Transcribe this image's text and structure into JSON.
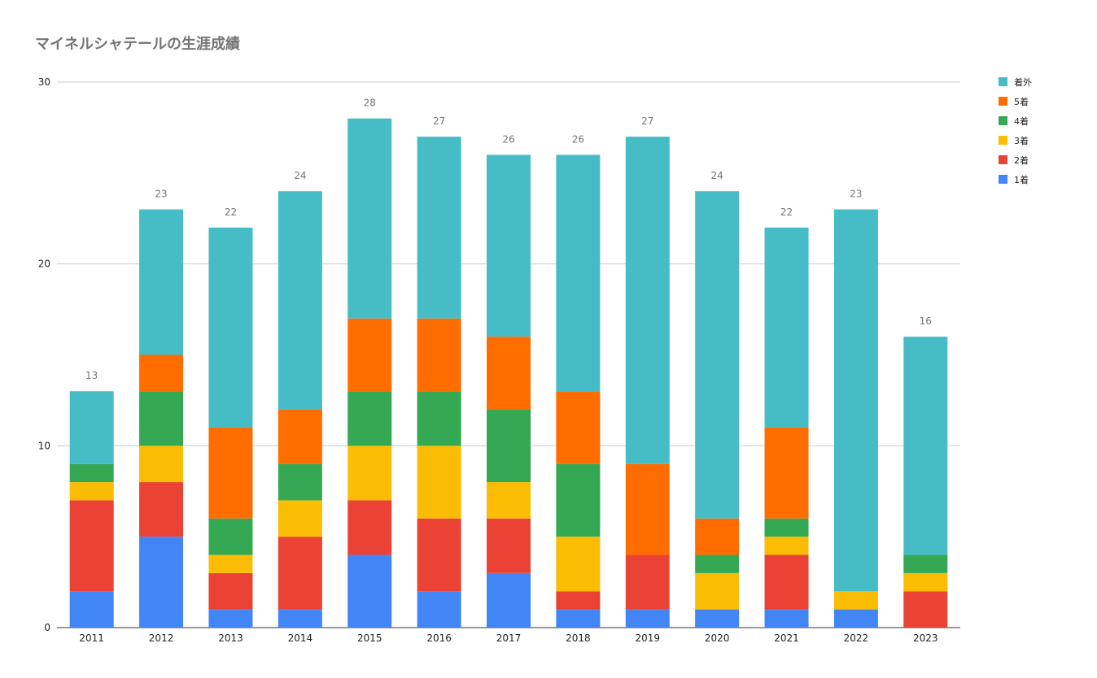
{
  "chart_data": {
    "type": "bar",
    "stacked": true,
    "title": "マイネルシャテールの生涯成績",
    "categories": [
      "2011",
      "2012",
      "2013",
      "2014",
      "2015",
      "2016",
      "2017",
      "2018",
      "2019",
      "2020",
      "2021",
      "2022",
      "2023"
    ],
    "series": [
      {
        "name": "1着",
        "color": "#4285f4",
        "values": [
          2,
          5,
          1,
          1,
          4,
          2,
          3,
          1,
          1,
          1,
          1,
          1,
          0
        ]
      },
      {
        "name": "2着",
        "color": "#ea4335",
        "values": [
          5,
          3,
          2,
          4,
          3,
          4,
          3,
          1,
          3,
          0,
          3,
          0,
          2
        ]
      },
      {
        "name": "3着",
        "color": "#fbbc04",
        "values": [
          1,
          2,
          1,
          2,
          3,
          4,
          2,
          3,
          0,
          2,
          1,
          1,
          1
        ]
      },
      {
        "name": "4着",
        "color": "#34a853",
        "values": [
          1,
          3,
          2,
          2,
          3,
          3,
          4,
          4,
          0,
          1,
          1,
          0,
          1
        ]
      },
      {
        "name": "5着",
        "color": "#ff6d01",
        "values": [
          0,
          2,
          5,
          3,
          4,
          4,
          4,
          4,
          5,
          2,
          5,
          0,
          0
        ]
      },
      {
        "name": "着外",
        "color": "#46bdc6",
        "values": [
          4,
          8,
          11,
          12,
          11,
          10,
          10,
          13,
          18,
          18,
          11,
          21,
          12
        ]
      }
    ],
    "totals": [
      "13",
      "23",
      "22",
      "24",
      "28",
      "27",
      "26",
      "26",
      "27",
      "24",
      "22",
      "23",
      "16"
    ],
    "ylim": [
      0,
      30
    ],
    "yticks": [
      "0",
      "10",
      "20",
      "30"
    ],
    "grid": true,
    "legend": "right"
  }
}
